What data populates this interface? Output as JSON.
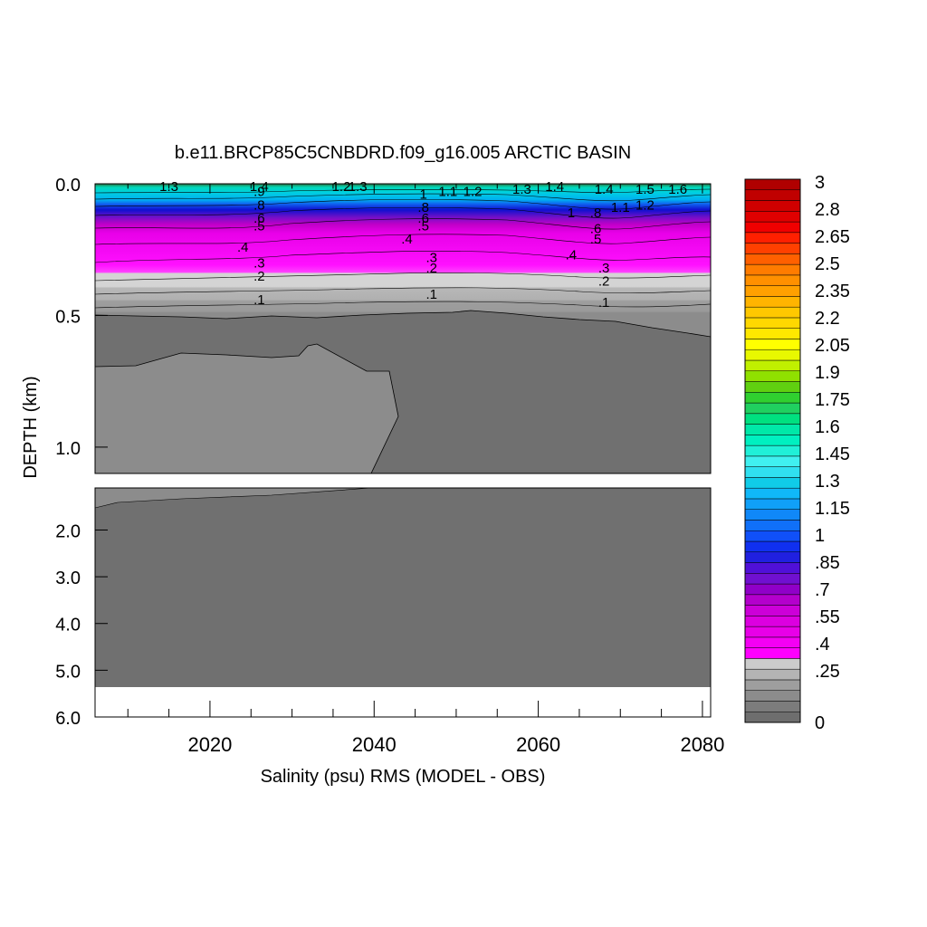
{
  "chart_data": {
    "type": "heatmap",
    "title": "b.e11.BRCP85C5CNBDRD.f09_g16.005 ARCTIC BASIN",
    "xlabel": "Salinity (psu) RMS (MODEL - OBS)",
    "ylabel": "DEPTH (km)",
    "x_range": [
      2006,
      2081
    ],
    "x_ticks": [
      "2020",
      "2040",
      "2060",
      "2080"
    ],
    "upper_panel": {
      "y_range": [
        0.0,
        1.1
      ],
      "y_ticks": [
        "0.0",
        "0.5",
        "1.0"
      ]
    },
    "lower_panel": {
      "y_range": [
        1.1,
        6.0
      ],
      "y_ticks": [
        "2.0",
        "3.0",
        "4.0",
        "5.0",
        "6.0"
      ]
    },
    "colorbar": {
      "min": 0,
      "max": 3,
      "labels": [
        "3",
        "2.8",
        "2.65",
        "2.5",
        "2.35",
        "2.2",
        "2.05",
        "1.9",
        "1.75",
        "1.6",
        "1.45",
        "1.3",
        "1.15",
        "1",
        ".85",
        ".7",
        ".55",
        ".4",
        ".25",
        "0"
      ]
    },
    "contour_labels": [
      {
        "text": "1.3",
        "x": 2015,
        "d": 0.01
      },
      {
        "text": "1.4",
        "x": 2026,
        "d": 0.01
      },
      {
        "text": ".9",
        "x": 2026,
        "d": 0.03
      },
      {
        "text": "1.2",
        "x": 2036,
        "d": 0.01
      },
      {
        "text": "1.3",
        "x": 2038,
        "d": 0.01
      },
      {
        "text": "1",
        "x": 2046,
        "d": 0.04
      },
      {
        "text": "1.1",
        "x": 2049,
        "d": 0.03
      },
      {
        "text": "1.2",
        "x": 2052,
        "d": 0.03
      },
      {
        "text": "1.3",
        "x": 2058,
        "d": 0.02
      },
      {
        "text": "1.4",
        "x": 2062,
        "d": 0.01
      },
      {
        "text": "1.4",
        "x": 2068,
        "d": 0.02
      },
      {
        "text": "1.5",
        "x": 2073,
        "d": 0.02
      },
      {
        "text": "1.6",
        "x": 2077,
        "d": 0.02
      },
      {
        "text": "1",
        "x": 2064,
        "d": 0.11
      },
      {
        "text": "1.1",
        "x": 2070,
        "d": 0.09
      },
      {
        "text": "1.2",
        "x": 2073,
        "d": 0.08
      },
      {
        "text": ".8",
        "x": 2026,
        "d": 0.08
      },
      {
        "text": ".6",
        "x": 2026,
        "d": 0.13
      },
      {
        "text": ".5",
        "x": 2026,
        "d": 0.16
      },
      {
        "text": ".8",
        "x": 2046,
        "d": 0.09
      },
      {
        "text": ".6",
        "x": 2046,
        "d": 0.13
      },
      {
        "text": ".5",
        "x": 2046,
        "d": 0.16
      },
      {
        "text": ".8",
        "x": 2067,
        "d": 0.11
      },
      {
        "text": ".6",
        "x": 2067,
        "d": 0.17
      },
      {
        "text": ".5",
        "x": 2067,
        "d": 0.21
      },
      {
        "text": ".4",
        "x": 2024,
        "d": 0.24
      },
      {
        "text": ".4",
        "x": 2044,
        "d": 0.21
      },
      {
        "text": ".4",
        "x": 2064,
        "d": 0.27
      },
      {
        "text": ".3",
        "x": 2026,
        "d": 0.3
      },
      {
        "text": ".2",
        "x": 2026,
        "d": 0.35
      },
      {
        "text": ".1",
        "x": 2026,
        "d": 0.44
      },
      {
        "text": ".3",
        "x": 2047,
        "d": 0.28
      },
      {
        "text": ".2",
        "x": 2047,
        "d": 0.32
      },
      {
        "text": ".1",
        "x": 2047,
        "d": 0.42
      },
      {
        "text": ".3",
        "x": 2068,
        "d": 0.32
      },
      {
        "text": ".2",
        "x": 2068,
        "d": 0.37
      },
      {
        "text": ".1",
        "x": 2068,
        "d": 0.45
      }
    ]
  }
}
